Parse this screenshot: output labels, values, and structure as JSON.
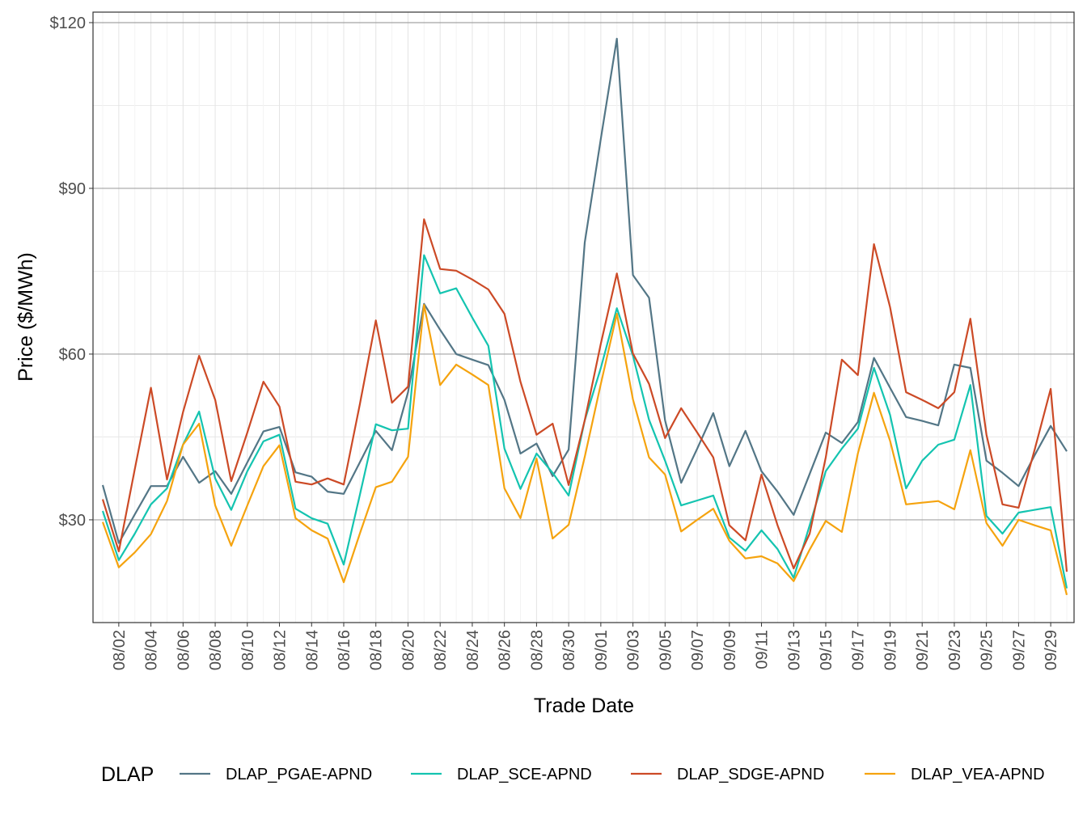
{
  "chart_data": {
    "type": "line",
    "x_label": "Trade Date",
    "y_label": "Price ($/MWh)",
    "legend_title": "DLAP",
    "legend_position": "bottom",
    "grid": true,
    "x": [
      null,
      "08/02",
      null,
      "08/04",
      null,
      "08/06",
      null,
      "08/08",
      null,
      "08/10",
      null,
      "08/12",
      null,
      "08/14",
      null,
      "08/16",
      null,
      "08/18",
      null,
      "08/20",
      null,
      "08/22",
      null,
      "08/24",
      null,
      "08/26",
      null,
      "08/28",
      null,
      "08/30",
      null,
      "09/01",
      null,
      "09/03",
      null,
      "09/05",
      null,
      "09/07",
      null,
      "09/09",
      null,
      "09/11",
      null,
      "09/13",
      null,
      "09/15",
      null,
      "09/17",
      null,
      "09/19",
      null,
      "09/21",
      null,
      "09/23",
      null,
      "09/25",
      null,
      "09/27",
      null,
      "09/29",
      null
    ],
    "ylim": [
      11.4,
      121.9
    ],
    "yticks": [
      {
        "value": 30,
        "label": "$30"
      },
      {
        "value": 60,
        "label": "$60"
      },
      {
        "value": 90,
        "label": "$90"
      },
      {
        "value": 120,
        "label": "$120"
      }
    ],
    "series": [
      {
        "name": "DLAP_PGAE-APND",
        "color": "#537686",
        "values": [
          36.3,
          25.8,
          31,
          36.1,
          36.1,
          41.4,
          36.7,
          38.8,
          34.7,
          40.4,
          46,
          46.8,
          38.6,
          37.8,
          35.1,
          34.7,
          40.4,
          46.1,
          42.6,
          53.1,
          69.1,
          64.4,
          60,
          59,
          58,
          51.7,
          42,
          43.8,
          37.9,
          42.7,
          80.2,
          99,
          117.1,
          74.3,
          70.2,
          48,
          36.7,
          42.9,
          49.3,
          39.7,
          46.1,
          38.8,
          35.1,
          30.9,
          38.3,
          45.8,
          43.9,
          47.7,
          59.3,
          53.9,
          48.6,
          47.9,
          47.1,
          58.1,
          57.5,
          40.7,
          38.5,
          36.1,
          41.7,
          47,
          42.4
        ]
      },
      {
        "name": "DLAP_SCE-APND",
        "color": "#14c4b0",
        "values": [
          31.6,
          22.7,
          27.5,
          32.8,
          35.7,
          43.6,
          49.6,
          37.5,
          31.8,
          38.8,
          44.2,
          45.4,
          32,
          30.3,
          29.3,
          21.9,
          34.5,
          47.3,
          46.2,
          46.5,
          77.9,
          71,
          71.9,
          66.6,
          61.5,
          42.9,
          35.6,
          42,
          38.5,
          34.4,
          48,
          57.5,
          68.3,
          59.7,
          48.1,
          40.7,
          32.6,
          33.5,
          34.4,
          26.8,
          24.4,
          28.1,
          24.7,
          19.5,
          29,
          38.8,
          42.9,
          46.5,
          57.5,
          49,
          35.7,
          40.7,
          43.6,
          44.5,
          54.4,
          30.7,
          27.5,
          31.3,
          31.8,
          32.3,
          17.6
        ]
      },
      {
        "name": "DLAP_SDGE-APND",
        "color": "#cc4a26",
        "values": [
          33.7,
          24.3,
          39.2,
          53.9,
          37.3,
          49.5,
          59.7,
          51.7,
          37,
          45.8,
          55,
          50.5,
          36.9,
          36.4,
          37.5,
          36.4,
          50.9,
          66.1,
          51.2,
          54.1,
          84.4,
          75.4,
          75.1,
          73.5,
          71.7,
          67.3,
          55,
          45.4,
          47.4,
          36.3,
          48,
          61.9,
          74.6,
          60.1,
          54.6,
          44.8,
          50.2,
          45.8,
          41.3,
          29,
          26.3,
          38.2,
          29,
          21.2,
          27.5,
          41.3,
          59,
          56.2,
          79.9,
          68.5,
          53.1,
          51.7,
          50.2,
          53.1,
          66.4,
          45.4,
          32.8,
          32.2,
          42.7,
          53.7,
          20.6
        ]
      },
      {
        "name": "DLAP_VEA-APND",
        "color": "#f5a30e",
        "values": [
          29.6,
          21.4,
          24.1,
          27.4,
          33.4,
          43.6,
          47.4,
          32.6,
          25.3,
          32.6,
          39.7,
          43.5,
          30.3,
          28.1,
          26.6,
          18.7,
          27.5,
          35.9,
          36.9,
          41.4,
          68.9,
          54.4,
          58.1,
          56.3,
          54.4,
          35.7,
          30.3,
          41.1,
          26.6,
          29.1,
          41.4,
          54.6,
          67.3,
          51.8,
          41.3,
          38.2,
          27.9,
          30,
          32,
          26.2,
          23,
          23.4,
          22.1,
          18.9,
          24.6,
          29.8,
          27.8,
          42,
          53,
          44.3,
          32.8,
          33.1,
          33.4,
          31.9,
          42.6,
          29.4,
          25.3,
          30,
          29,
          28.1,
          16.4
        ]
      }
    ]
  }
}
